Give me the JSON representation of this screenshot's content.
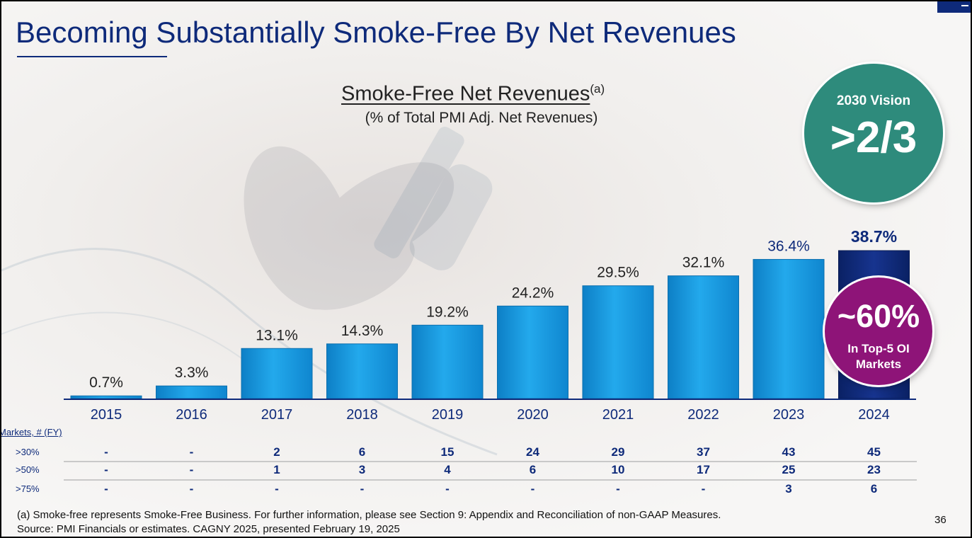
{
  "slide": {
    "title": "Becoming Substantially Smoke-Free By Net Revenues",
    "page_number": "36"
  },
  "chart_title": {
    "main": "Smoke-Free Net Revenues",
    "superscript": "(a)",
    "subtitle": "(% of Total PMI Adj. Net Revenues)"
  },
  "chart_data": {
    "type": "bar",
    "title": "Smoke-Free Net Revenues",
    "subtitle": "(% of Total PMI Adj. Net Revenues)",
    "categories": [
      "2015",
      "2016",
      "2017",
      "2018",
      "2019",
      "2020",
      "2021",
      "2022",
      "2023",
      "2024"
    ],
    "values": [
      0.7,
      3.3,
      13.1,
      14.3,
      19.2,
      24.2,
      29.5,
      32.1,
      36.4,
      38.7
    ],
    "labels": [
      "0.7%",
      "3.3%",
      "13.1%",
      "14.3%",
      "19.2%",
      "24.2%",
      "29.5%",
      "32.1%",
      "36.4%",
      "38.7%"
    ],
    "ylim": [
      0,
      40
    ],
    "xlabel": "",
    "ylabel": "",
    "colors": {
      "bar": "#1a9be0",
      "highlight": "#0e2a7a",
      "axis": "#0e2a7a",
      "label": "#222222"
    },
    "highlight_index": 9
  },
  "vision": {
    "label": "2030 Vision",
    "value": ">2/3",
    "color": "#2e8b7c"
  },
  "top5_badge": {
    "value": "~60%",
    "line1": "In Top-5 OI",
    "line2": "Markets",
    "color": "#8e1478"
  },
  "markets_table": {
    "title": "Markets, # (FY)",
    "rows": [
      {
        "label": ">30%",
        "values": [
          "-",
          "-",
          "2",
          "6",
          "15",
          "24",
          "29",
          "37",
          "43",
          "45"
        ]
      },
      {
        "label": ">50%",
        "values": [
          "-",
          "-",
          "1",
          "3",
          "4",
          "6",
          "10",
          "17",
          "25",
          "23"
        ]
      },
      {
        "label": ">75%",
        "values": [
          "-",
          "-",
          "-",
          "-",
          "-",
          "-",
          "-",
          "-",
          "3",
          "6"
        ]
      }
    ]
  },
  "footnote": {
    "line1": "(a) Smoke-free represents Smoke-Free Business. For further information, please see Section 9: Appendix and Reconciliation of non-GAAP Measures.",
    "line2": "Source: PMI Financials or estimates. CAGNY 2025, presented February 19, 2025"
  }
}
